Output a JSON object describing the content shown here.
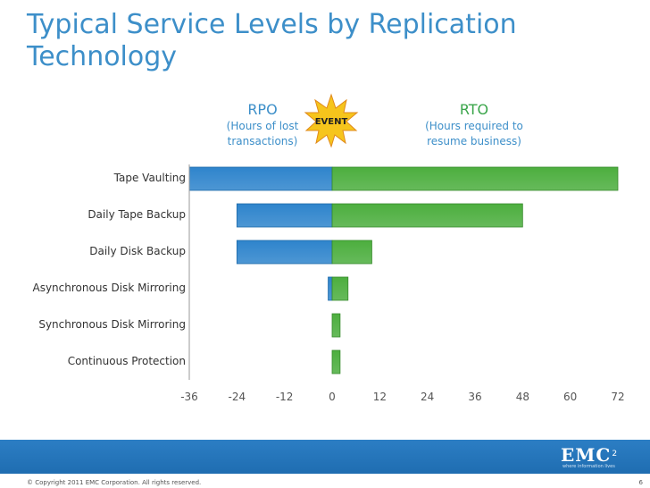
{
  "title": {
    "line1": "Typical Service Levels by Replication",
    "line2": "Technology"
  },
  "headers": {
    "rpo": {
      "main": "RPO",
      "sub1": "(Hours of lost",
      "sub2": "transactions)"
    },
    "event": "EVENT",
    "rto": {
      "main": "RTO",
      "sub1": "(Hours required to",
      "sub2": "resume business)"
    }
  },
  "chart_data": {
    "type": "bar",
    "orientation": "horizontal",
    "categories": [
      "Tape Vaulting",
      "Daily Tape Backup",
      "Daily Disk Backup",
      "Asynchronous Disk Mirroring",
      "Synchronous Disk Mirroring",
      "Continuous Protection"
    ],
    "series": [
      {
        "name": "RPO",
        "color": "#2e84cc",
        "values": [
          -36,
          -24,
          -24,
          -1,
          0,
          0
        ]
      },
      {
        "name": "RTO",
        "color": "#4cae3e",
        "values": [
          72,
          48,
          10,
          4,
          2,
          2
        ]
      }
    ],
    "x_ticks": [
      "-36",
      "-24",
      "-12",
      "0",
      "12",
      "24",
      "36",
      "48",
      "60",
      "72"
    ],
    "xlim": [
      -36,
      72
    ]
  },
  "footer": {
    "logo": "EMC",
    "logo_sup": "2",
    "logo_tagline": "where information lives",
    "copyright": "© Copyright 2011 EMC Corporation. All rights reserved.",
    "page": "6"
  }
}
